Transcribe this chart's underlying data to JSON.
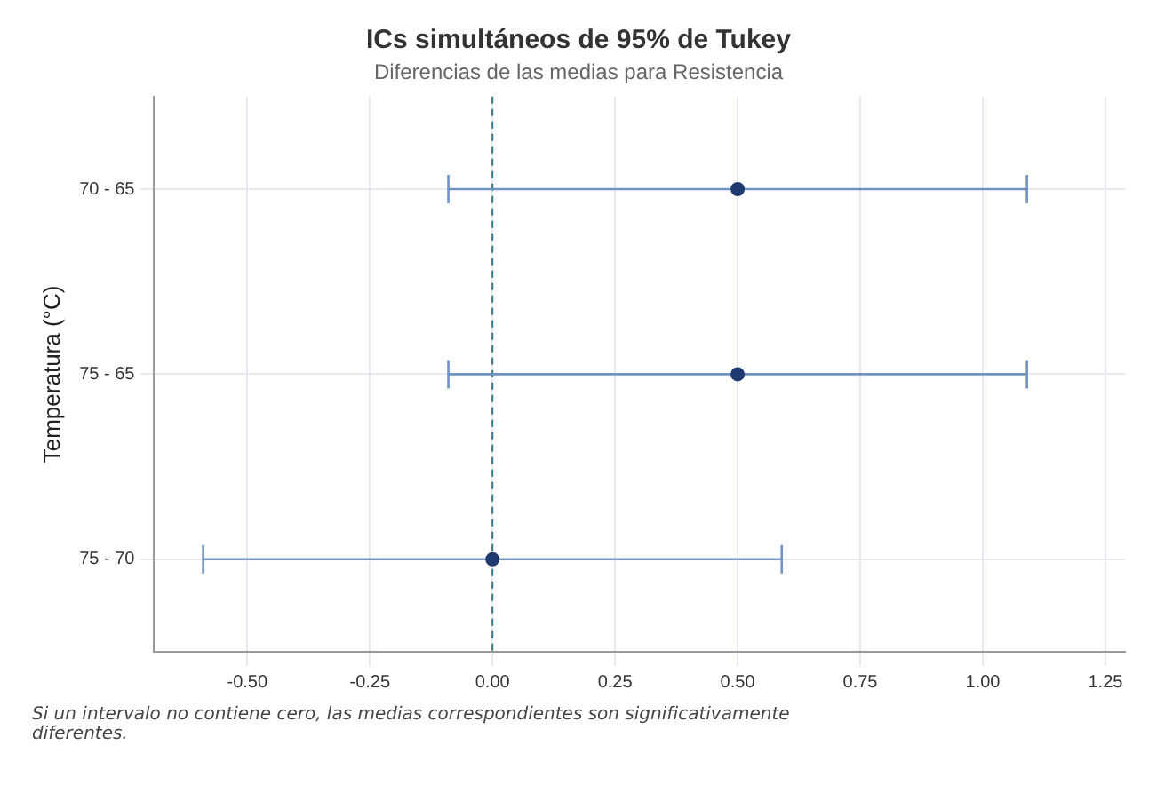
{
  "chart_data": {
    "type": "scatter",
    "orientation": "horizontal",
    "title": "ICs simultáneos de 95% de Tukey",
    "subtitle": "Diferencias de las medias para Resistencia",
    "ylabel": "Temperatura (°C)",
    "categories": [
      "70 - 65",
      "75 - 65",
      "75 - 70"
    ],
    "values": [
      0.5,
      0.5,
      0.0
    ],
    "errors": [
      0.59,
      0.59,
      0.59
    ],
    "color": "#1f3a6e",
    "marker": "circle",
    "grid": true,
    "xlim": [
      -0.69,
      1.29
    ],
    "xticks": [
      {
        "value": -0.5,
        "label": "-0.50"
      },
      {
        "value": -0.25,
        "label": "-0.25"
      },
      {
        "value": 0,
        "label": "0.00"
      },
      {
        "value": 0.25,
        "label": "0.25"
      },
      {
        "value": 0.5,
        "label": "0.50"
      },
      {
        "value": 0.75,
        "label": "0.75"
      },
      {
        "value": 1,
        "label": "1.00"
      },
      {
        "value": 1.25,
        "label": "1.25"
      }
    ],
    "ref_lines": [
      {
        "axis": "x",
        "value": 0,
        "color": "#2a7a8c",
        "line_style": "dashed"
      }
    ],
    "annotations": [
      "Si un intervalo no contiene cero, las medias correspondientes son significativamente diferentes."
    ]
  }
}
